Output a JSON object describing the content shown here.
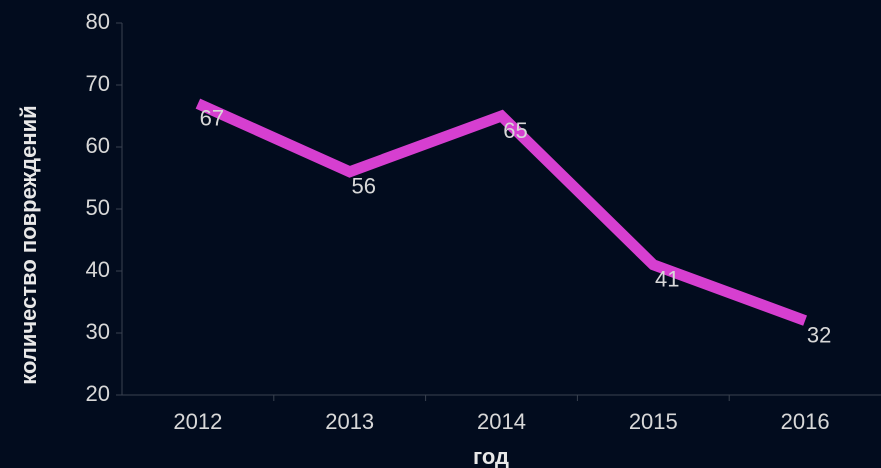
{
  "chart_data": {
    "type": "line",
    "x_label": "год",
    "y_label": "количество повреждений",
    "categories": [
      "2012",
      "2013",
      "2014",
      "2015",
      "2016"
    ],
    "series": [
      {
        "name": "количество повреждений",
        "color": "#d63fd0",
        "values": [
          67,
          56,
          65,
          41,
          32
        ]
      }
    ],
    "ylim": [
      20,
      80
    ],
    "yticks": [
      20,
      30,
      40,
      50,
      60,
      70,
      80
    ]
  }
}
